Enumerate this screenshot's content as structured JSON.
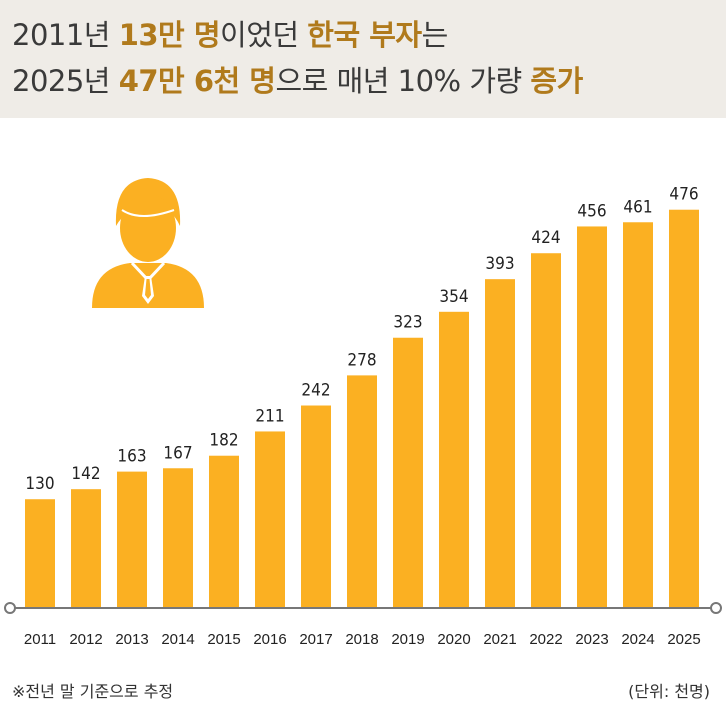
{
  "header": {
    "line1": [
      {
        "text": "2011년 ",
        "hl": false
      },
      {
        "text": "13만 명",
        "hl": true
      },
      {
        "text": "이었던 ",
        "hl": false
      },
      {
        "text": "한국 부자",
        "hl": true
      },
      {
        "text": "는",
        "hl": false
      }
    ],
    "line2": [
      {
        "text": "2025년 ",
        "hl": false
      },
      {
        "text": "47만 6천 명",
        "hl": true
      },
      {
        "text": "으로 매년 10% 가량 ",
        "hl": false
      },
      {
        "text": "증가",
        "hl": true
      }
    ]
  },
  "icon": "businessman-icon",
  "colors": {
    "bar": "#fbb022",
    "highlight": "#b07a1c",
    "header_bg": "#efece7",
    "axis": "#777777"
  },
  "chart_data": {
    "type": "bar",
    "categories": [
      "2011",
      "2012",
      "2013",
      "2014",
      "2015",
      "2016",
      "2017",
      "2018",
      "2019",
      "2020",
      "2021",
      "2022",
      "2023",
      "2024",
      "2025"
    ],
    "values": [
      130,
      142,
      163,
      167,
      182,
      211,
      242,
      278,
      323,
      354,
      393,
      424,
      456,
      461,
      476
    ],
    "ylim": [
      0,
      490
    ],
    "grid": false,
    "legend": "none"
  },
  "footnote": "※전년 말 기준으로 추정",
  "unit_label": "(단위: 천명)"
}
